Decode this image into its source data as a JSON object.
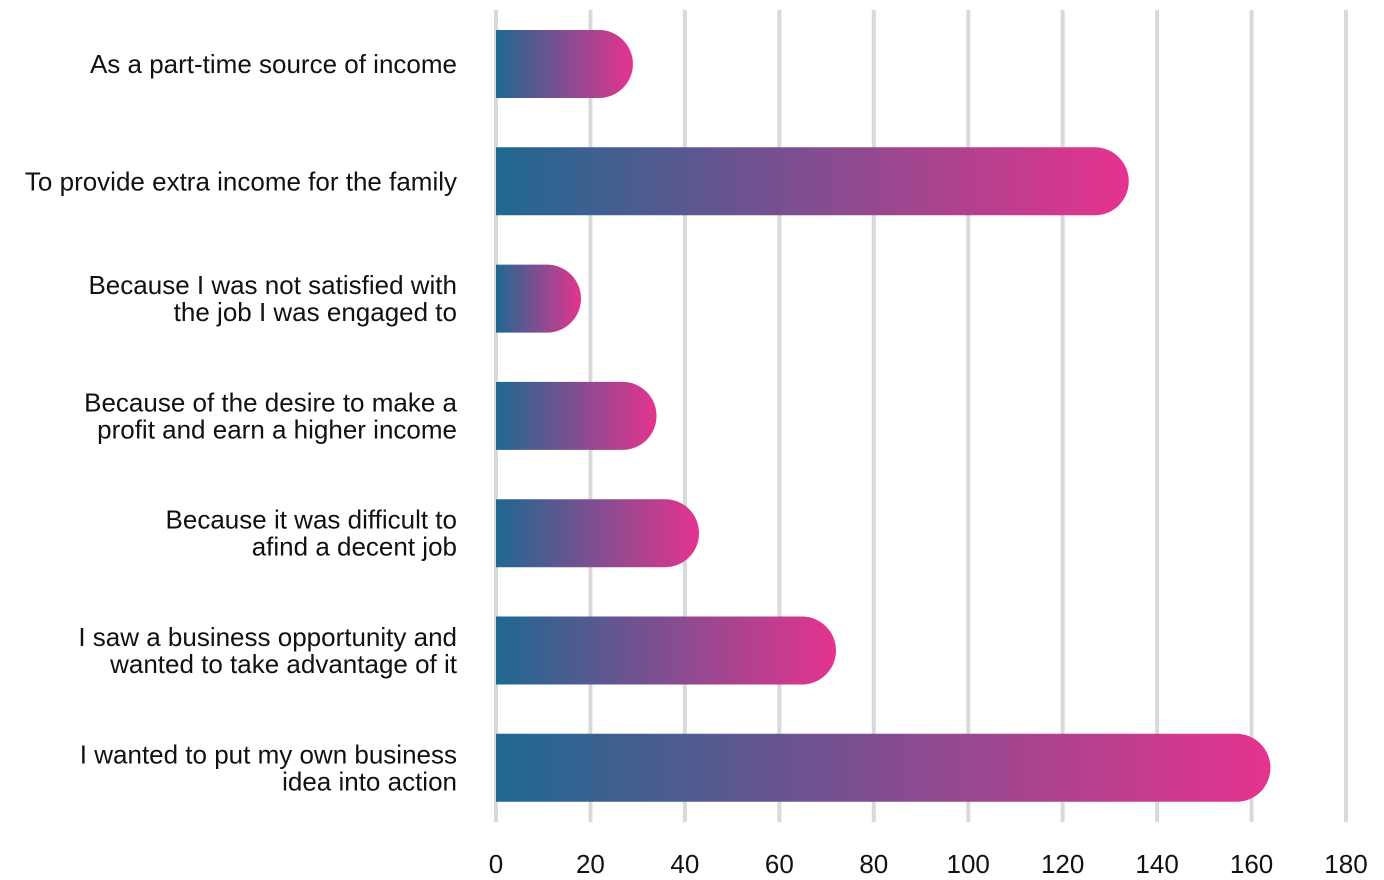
{
  "chart_data": {
    "type": "bar",
    "orientation": "horizontal",
    "categories": [
      [
        "As a part-time source of income"
      ],
      [
        "To provide extra income for the family"
      ],
      [
        "Because I was not satisfied with",
        "the job I was engaged to"
      ],
      [
        "Because of the desire to make a",
        "profit and earn a higher income"
      ],
      [
        "Because it was difficult to",
        "afind a decent job"
      ],
      [
        "I saw a business opportunity and",
        "wanted to take advantage of it"
      ],
      [
        "I wanted to put my own business",
        "idea into action"
      ]
    ],
    "values": [
      29,
      134,
      18,
      34,
      43,
      72,
      164
    ],
    "xticks": [
      "0",
      "20",
      "40",
      "60",
      "80",
      "100",
      "120",
      "140",
      "160",
      "180"
    ],
    "xlim": [
      0,
      180
    ],
    "grid": "vertical",
    "colors": {
      "bar_start": "#1f6890",
      "bar_end": "#e5338f",
      "grid": "#d9d9d9",
      "text": "#111111"
    }
  }
}
